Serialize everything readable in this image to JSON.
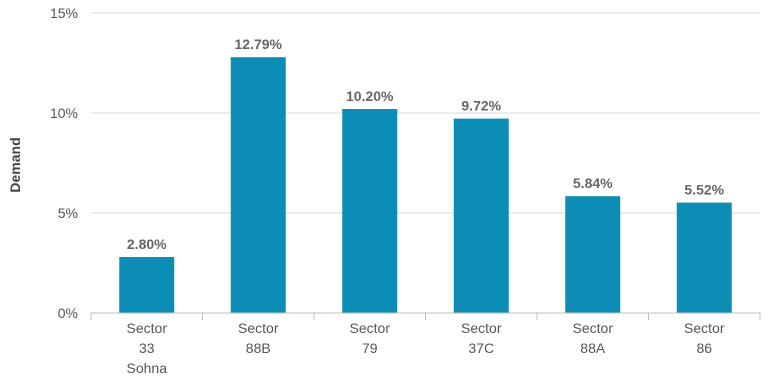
{
  "chart_data": {
    "type": "bar",
    "categories": [
      [
        "Sector",
        "33",
        "Sohna"
      ],
      [
        "Sector",
        "88B"
      ],
      [
        "Sector",
        "79"
      ],
      [
        "Sector",
        "37C"
      ],
      [
        "Sector",
        "88A"
      ],
      [
        "Sector",
        "86"
      ]
    ],
    "values": [
      2.8,
      12.79,
      10.2,
      9.72,
      5.84,
      5.52
    ],
    "data_labels": [
      "2.80%",
      "12.79%",
      "10.20%",
      "9.72%",
      "5.84%",
      "5.52%"
    ],
    "ylabel": "Demand",
    "xlabel": "",
    "ylim": [
      0,
      15
    ],
    "yticks": [
      0,
      5,
      10,
      15
    ],
    "ytick_labels": [
      "0%",
      "5%",
      "10%",
      "15%"
    ],
    "grid": true,
    "legend": "none",
    "colors": {
      "bar": "#0b8db5",
      "grid": "#d9d9d9",
      "axis": "#bfbfbf"
    }
  }
}
